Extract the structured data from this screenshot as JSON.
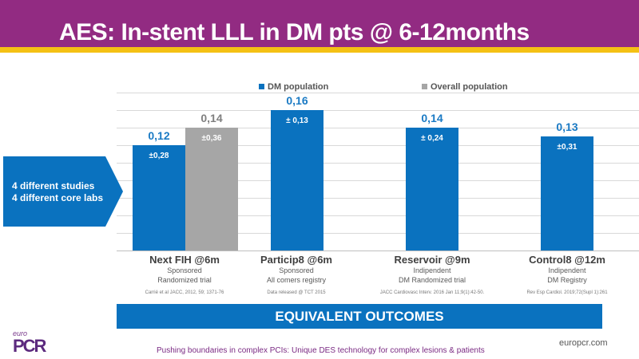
{
  "header": {
    "title": "AES: In-stent LLL in DM pts @ 6-12months"
  },
  "callout": {
    "line1": "4 different studies",
    "line2": "4 different core labs"
  },
  "chart_data": {
    "type": "bar",
    "title": "",
    "xlabel": "",
    "ylabel": "",
    "ylim": [
      0,
      0.18
    ],
    "grid": true,
    "legend_position": "top",
    "categories": [
      "Next FIH @6m",
      "Particip8 @6m",
      "Reservoir @9m",
      "Control8 @12m"
    ],
    "series": [
      {
        "name": "DM population",
        "color": "#0a72bf",
        "values": [
          0.12,
          0.16,
          0.14,
          0.13
        ],
        "value_labels": [
          "0,12",
          "0,16",
          "0,14",
          "0,13"
        ],
        "sd_labels": [
          "±0,28",
          "± 0,13",
          "± 0,24",
          "±0,31"
        ]
      },
      {
        "name": "Overall population",
        "color": "#a6a6a6",
        "values": [
          0.14,
          null,
          null,
          null
        ],
        "value_labels": [
          "0,14",
          null,
          null,
          null
        ],
        "sd_labels": [
          "±0,36",
          null,
          null,
          null
        ]
      }
    ],
    "category_details": [
      {
        "line1": "Sponsored",
        "line2": "Randomized trial",
        "reference": "Carrié et al JACC, 2012, 59; 1371-76"
      },
      {
        "line1": "Sponsored",
        "line2": "All comers registry",
        "reference": "Data released @ TCT 2015"
      },
      {
        "line1": "Indipendent",
        "line2": "DM Randomized trial",
        "reference": "JACC Cardiovasc Interv. 2016 Jan 11;9(1):42-50."
      },
      {
        "line1": "Indipendent",
        "line2": "DM Registry",
        "reference": "Rev Esp Cardiol. 2019;72(Supl 1):261"
      }
    ]
  },
  "banner": {
    "text": "EQUIVALENT OUTCOMES"
  },
  "footer": {
    "logo_top": "euro",
    "logo_bottom": "PCR",
    "tagline": "Pushing boundaries in complex PCIs: Unique DES technology for complex lesions & patients",
    "site": "europcr.com"
  }
}
